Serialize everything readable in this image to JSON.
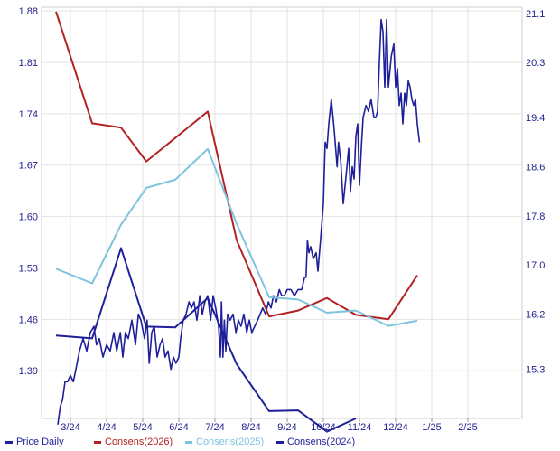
{
  "chart_data": {
    "type": "line",
    "x_labels": [
      "3/24",
      "4/24",
      "5/24",
      "6/24",
      "7/24",
      "8/24",
      "9/24",
      "10/24",
      "11/24",
      "12/24",
      "1/25",
      "2/25"
    ],
    "left_axis": {
      "ticks": [
        "1.88",
        "1.81",
        "1.74",
        "1.67",
        "1.60",
        "1.53",
        "1.46",
        "1.39"
      ],
      "range": [
        1.325,
        1.885
      ]
    },
    "right_axis": {
      "ticks": [
        "21.1",
        "20.3",
        "19.4",
        "18.6",
        "17.8",
        "17.0",
        "16.2",
        "15.3"
      ],
      "range": [
        14.5,
        21.2
      ]
    },
    "grid": true,
    "legend_position": "bottom",
    "series": [
      {
        "name": "Price Daily",
        "axis": "right",
        "color": "#1f1f9a",
        "points": [
          [
            2.65,
            14.4
          ],
          [
            2.72,
            14.7
          ],
          [
            2.78,
            14.8
          ],
          [
            2.85,
            15.1
          ],
          [
            2.92,
            15.1
          ],
          [
            3.0,
            15.2
          ],
          [
            3.08,
            15.1
          ],
          [
            3.15,
            15.3
          ],
          [
            3.25,
            15.6
          ],
          [
            3.35,
            15.8
          ],
          [
            3.45,
            15.6
          ],
          [
            3.55,
            15.9
          ],
          [
            3.65,
            16.0
          ],
          [
            3.72,
            15.7
          ],
          [
            3.8,
            15.8
          ],
          [
            3.9,
            15.5
          ],
          [
            4.0,
            15.7
          ],
          [
            4.1,
            15.6
          ],
          [
            4.2,
            15.9
          ],
          [
            4.28,
            15.6
          ],
          [
            4.38,
            15.9
          ],
          [
            4.45,
            15.5
          ],
          [
            4.52,
            15.9
          ],
          [
            4.6,
            15.8
          ],
          [
            4.7,
            16.1
          ],
          [
            4.8,
            15.7
          ],
          [
            4.88,
            16.2
          ],
          [
            4.95,
            16.1
          ],
          [
            5.05,
            15.8
          ],
          [
            5.12,
            16.1
          ],
          [
            5.18,
            15.4
          ],
          [
            5.25,
            15.9
          ],
          [
            5.32,
            16.0
          ],
          [
            5.4,
            15.5
          ],
          [
            5.48,
            15.7
          ],
          [
            5.55,
            15.8
          ],
          [
            5.62,
            15.5
          ],
          [
            5.7,
            15.6
          ],
          [
            5.78,
            15.3
          ],
          [
            5.85,
            15.5
          ],
          [
            5.92,
            15.4
          ],
          [
            6.0,
            15.5
          ],
          [
            6.05,
            15.8
          ],
          [
            6.12,
            16.1
          ],
          [
            6.2,
            16.2
          ],
          [
            6.28,
            16.4
          ],
          [
            6.35,
            16.3
          ],
          [
            6.42,
            16.4
          ],
          [
            6.5,
            16.1
          ],
          [
            6.58,
            16.5
          ],
          [
            6.65,
            16.2
          ],
          [
            6.72,
            16.4
          ],
          [
            6.8,
            16.5
          ],
          [
            6.88,
            16.1
          ],
          [
            6.95,
            16.5
          ],
          [
            7.02,
            16.3
          ],
          [
            7.1,
            16.0
          ],
          [
            7.15,
            15.5
          ],
          [
            7.18,
            16.4
          ],
          [
            7.22,
            15.5
          ],
          [
            7.26,
            16.1
          ],
          [
            7.3,
            15.6
          ],
          [
            7.35,
            16.2
          ],
          [
            7.42,
            16.1
          ],
          [
            7.5,
            16.2
          ],
          [
            7.58,
            15.9
          ],
          [
            7.65,
            16.1
          ],
          [
            7.72,
            16.0
          ],
          [
            7.8,
            16.2
          ],
          [
            7.88,
            15.9
          ],
          [
            7.95,
            16.1
          ],
          [
            8.02,
            15.9
          ],
          [
            8.1,
            16.0
          ],
          [
            8.18,
            16.1
          ],
          [
            8.25,
            16.2
          ],
          [
            8.32,
            16.3
          ],
          [
            8.4,
            16.2
          ],
          [
            8.48,
            16.4
          ],
          [
            8.55,
            16.3
          ],
          [
            8.62,
            16.5
          ],
          [
            8.7,
            16.4
          ],
          [
            8.78,
            16.6
          ],
          [
            8.85,
            16.5
          ],
          [
            8.92,
            16.5
          ],
          [
            9.0,
            16.6
          ],
          [
            9.1,
            16.6
          ],
          [
            9.2,
            16.5
          ],
          [
            9.3,
            16.6
          ],
          [
            9.4,
            16.6
          ],
          [
            9.48,
            16.8
          ],
          [
            9.52,
            16.8
          ],
          [
            9.56,
            17.4
          ],
          [
            9.6,
            17.2
          ],
          [
            9.65,
            17.3
          ],
          [
            9.72,
            17.1
          ],
          [
            9.8,
            17.2
          ],
          [
            9.85,
            16.9
          ],
          [
            9.92,
            17.4
          ],
          [
            10.0,
            18.0
          ],
          [
            10.05,
            19.0
          ],
          [
            10.1,
            18.9
          ],
          [
            10.15,
            19.3
          ],
          [
            10.22,
            19.7
          ],
          [
            10.3,
            19.2
          ],
          [
            10.38,
            18.6
          ],
          [
            10.42,
            19.0
          ],
          [
            10.48,
            18.7
          ],
          [
            10.55,
            18.0
          ],
          [
            10.62,
            18.4
          ],
          [
            10.7,
            18.9
          ],
          [
            10.75,
            18.2
          ],
          [
            10.8,
            18.6
          ],
          [
            10.85,
            18.4
          ],
          [
            10.9,
            19.1
          ],
          [
            10.95,
            19.3
          ],
          [
            11.0,
            18.3
          ],
          [
            11.05,
            18.9
          ],
          [
            11.1,
            19.4
          ],
          [
            11.18,
            19.6
          ],
          [
            11.25,
            19.5
          ],
          [
            11.32,
            19.7
          ],
          [
            11.4,
            19.4
          ],
          [
            11.45,
            19.4
          ],
          [
            11.5,
            19.5
          ],
          [
            11.55,
            20.3
          ],
          [
            11.6,
            21.0
          ],
          [
            11.65,
            20.8
          ],
          [
            11.7,
            19.9
          ],
          [
            11.75,
            21.0
          ],
          [
            11.8,
            19.9
          ],
          [
            11.88,
            20.4
          ],
          [
            11.95,
            20.6
          ],
          [
            12.0,
            19.9
          ],
          [
            12.05,
            20.2
          ],
          [
            12.1,
            19.6
          ],
          [
            12.15,
            19.8
          ],
          [
            12.2,
            19.3
          ],
          [
            12.25,
            19.8
          ],
          [
            12.3,
            19.6
          ],
          [
            12.35,
            20.0
          ],
          [
            12.4,
            19.9
          ],
          [
            12.45,
            19.7
          ],
          [
            12.5,
            19.6
          ],
          [
            12.55,
            19.7
          ],
          [
            12.6,
            19.3
          ],
          [
            12.66,
            19.0
          ]
        ]
      },
      {
        "name": "Consens(2026)",
        "axis": "left",
        "color": "#b22222",
        "points": [
          [
            2.6,
            1.879
          ],
          [
            3.6,
            1.727
          ],
          [
            4.4,
            1.721
          ],
          [
            5.1,
            1.675
          ],
          [
            6.8,
            1.743
          ],
          [
            7.6,
            1.568
          ],
          [
            8.5,
            1.464
          ],
          [
            9.3,
            1.472
          ],
          [
            10.1,
            1.489
          ],
          [
            10.9,
            1.466
          ],
          [
            11.8,
            1.46
          ],
          [
            12.6,
            1.52
          ]
        ]
      },
      {
        "name": "Consens(2025)",
        "axis": "left",
        "color": "#7ec4de",
        "points": [
          [
            2.6,
            1.529
          ],
          [
            3.6,
            1.509
          ],
          [
            4.4,
            1.589
          ],
          [
            5.1,
            1.639
          ],
          [
            5.9,
            1.65
          ],
          [
            6.8,
            1.692
          ],
          [
            7.6,
            1.59
          ],
          [
            8.5,
            1.49
          ],
          [
            9.3,
            1.487
          ],
          [
            10.1,
            1.469
          ],
          [
            10.9,
            1.472
          ],
          [
            11.8,
            1.451
          ],
          [
            12.6,
            1.458
          ]
        ]
      },
      {
        "name": "Consens(2024)",
        "axis": "left",
        "color": "#1f1f9a",
        "points": [
          [
            2.6,
            1.438
          ],
          [
            3.6,
            1.434
          ],
          [
            4.4,
            1.557
          ],
          [
            5.1,
            1.45
          ],
          [
            5.9,
            1.449
          ],
          [
            6.8,
            1.489
          ],
          [
            7.6,
            1.399
          ],
          [
            8.5,
            1.335
          ],
          [
            9.3,
            1.336
          ],
          [
            10.1,
            1.307
          ],
          [
            10.9,
            1.325
          ]
        ]
      }
    ]
  },
  "legend": [
    {
      "label": "Price Daily",
      "color": "#1f1f9a"
    },
    {
      "label": "Consens(2026)",
      "color": "#b22222"
    },
    {
      "label": "Consens(2025)",
      "color": "#7ec4de"
    },
    {
      "label": "Consens(2024)",
      "color": "#1f1f9a"
    }
  ]
}
